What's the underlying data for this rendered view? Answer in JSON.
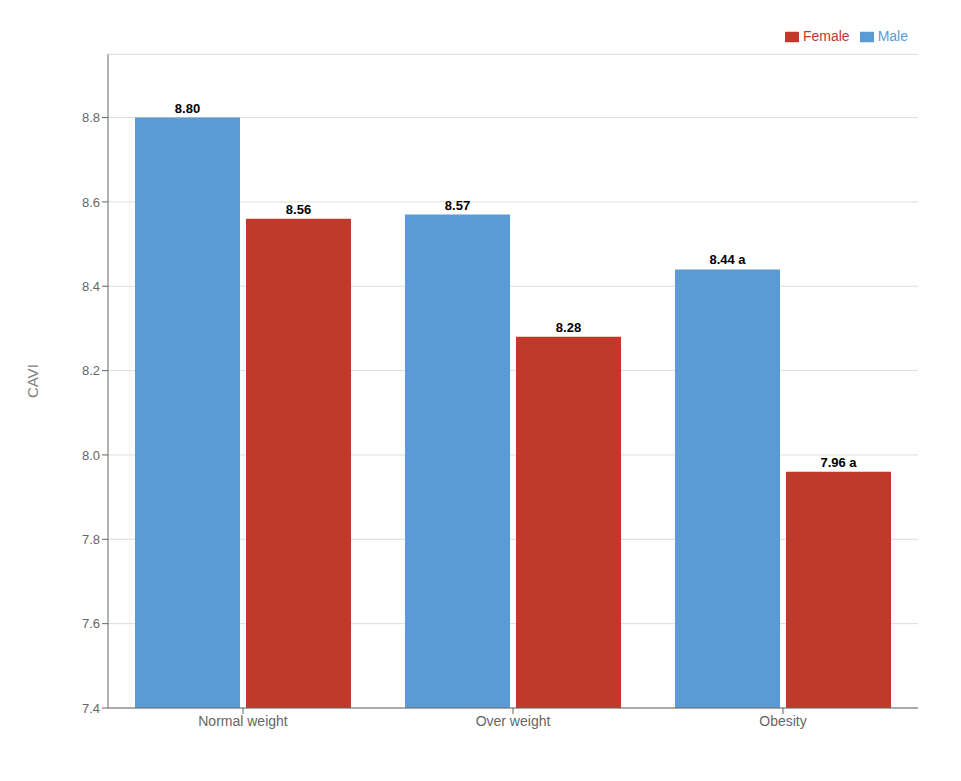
{
  "chart_data": {
    "type": "bar",
    "categories": [
      "Normal weight",
      "Over weight",
      "Obesity"
    ],
    "series": [
      {
        "name": "Male",
        "color": "#5b9bd5",
        "values": [
          8.8,
          8.57,
          8.44
        ],
        "value_labels": [
          "8.80",
          "8.57",
          "8.44 a"
        ]
      },
      {
        "name": "Female",
        "color": "#c0392b",
        "values": [
          8.56,
          8.28,
          7.96
        ],
        "value_labels": [
          "8.56",
          "8.28",
          "7.96 a"
        ]
      }
    ],
    "ylabel": "CAVI",
    "ylim": [
      7.4,
      8.95
    ],
    "yticks": [
      7.4,
      7.6,
      7.8,
      {
        "value": 8.0,
        "label": "8.0"
      },
      8.2,
      8.4,
      8.6,
      8.8
    ],
    "grid": true,
    "legend": "upper right",
    "data_labels": true
  }
}
